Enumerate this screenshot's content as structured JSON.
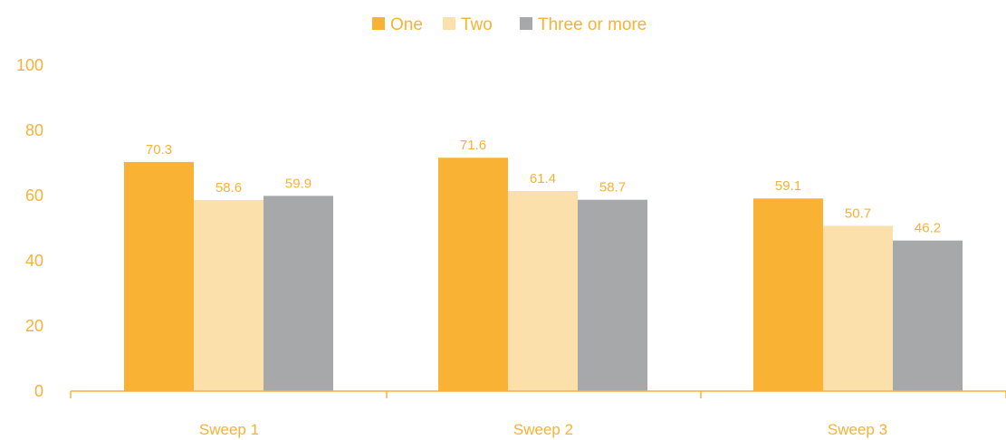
{
  "chart_data": {
    "type": "bar",
    "title": "",
    "xlabel": "",
    "ylabel": "",
    "categories": [
      "Sweep 1",
      "Sweep 2",
      "Sweep 3"
    ],
    "series": [
      {
        "name": "One",
        "values": [
          70.3,
          71.6,
          59.1
        ],
        "color": "#F9B233"
      },
      {
        "name": "Two",
        "values": [
          58.6,
          61.4,
          50.7
        ],
        "color": "#FCE0AC"
      },
      {
        "name": "Three or more",
        "values": [
          59.9,
          58.7,
          46.2
        ],
        "color": "#A7A8AA"
      }
    ],
    "ylim": [
      0,
      100
    ],
    "yticks": [
      "0",
      "20",
      "40",
      "60",
      "80",
      "100"
    ],
    "grid": false,
    "legend_position": "top-center",
    "text_color": "#F9B233",
    "axis_color": "#F9B233"
  }
}
